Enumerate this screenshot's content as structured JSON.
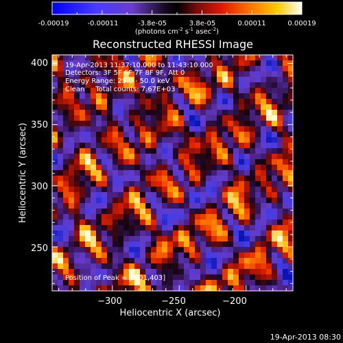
{
  "colorbar": {
    "ticks": [
      "-0.00019",
      "-0.00011",
      "-3.8e-05",
      "3.8e-05",
      "0.00011",
      "0.00019"
    ],
    "unit_text": "(photons cm",
    "unit_sup1": "-2",
    "unit_mid": " s",
    "unit_sup2": "-1",
    "unit_end": " asec",
    "unit_sup3": "-2",
    "unit_close": ")",
    "range": [
      -0.00019,
      0.00019
    ]
  },
  "title": "Reconstructed RHESSI Image",
  "info": {
    "line1": "19-Apr-2013 11:37:10.000 to 11:43:10.000",
    "line2": "Detectors: 3F 5F 6F 7F 8F 9F, Att 0",
    "line3": "Energy Range: 25.0 - 50.0 keV",
    "line4": "Clean     Total counts: 7.67E+03"
  },
  "peak_label": "Position of Peak = [-301,403]",
  "timestamp": "19-Apr-2013 08:30",
  "chart_data": {
    "type": "heatmap",
    "title": "Reconstructed RHESSI Image",
    "xlabel": "Heliocentric X (arcsec)",
    "ylabel": "Heliocentric Y (arcsec)",
    "xlim": [
      -345,
      -165
    ],
    "ylim": [
      214,
      407
    ],
    "xticks": [
      -300,
      -250,
      -200
    ],
    "xtick_labels": [
      "−300",
      "−250",
      "−200"
    ],
    "yticks": [
      250,
      300,
      350,
      400
    ],
    "ytick_labels": [
      "250",
      "300",
      "350",
      "400"
    ],
    "colorscale": "RHESSI diverging: blue (negative) → purple → black → red/orange/yellow/white (positive)",
    "peak_position": [
      -301,
      403
    ]
  },
  "colors": {
    "background": "#000000",
    "text": "#ffffff"
  }
}
